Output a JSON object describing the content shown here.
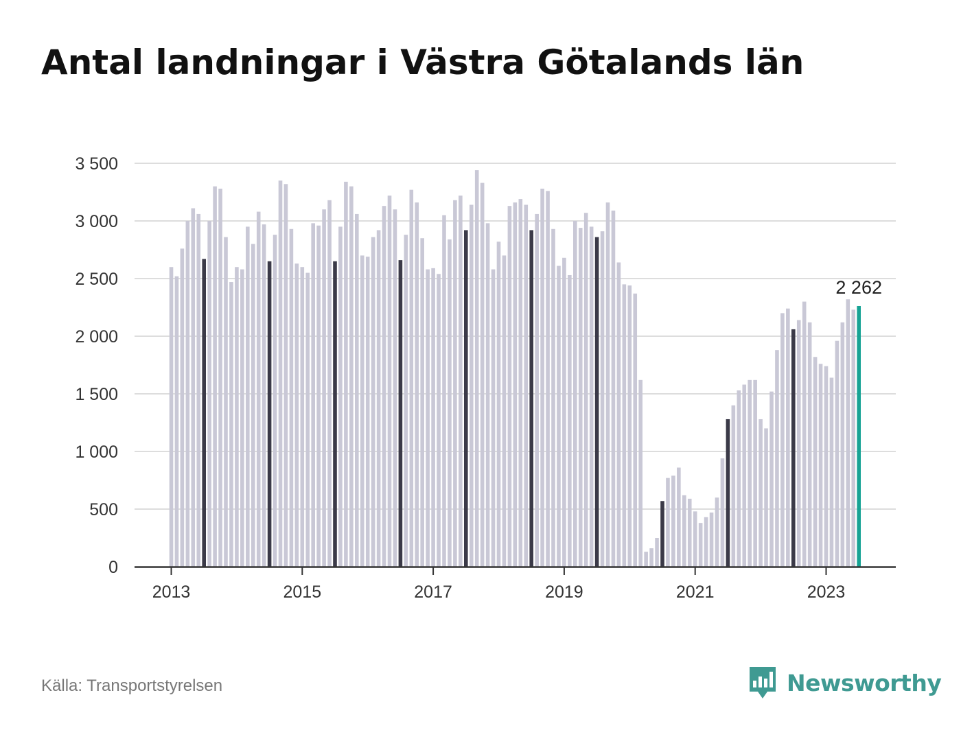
{
  "title": "Antal landningar i Västra Götalands län",
  "source": "Källa: Transportstyrelsen",
  "brand": "Newsworthy",
  "colors": {
    "bar": "#c9c8d6",
    "highlight": "#3b3a48",
    "latest": "#16a394",
    "grid": "#dddddd",
    "axis": "#333333",
    "brand": "#3f9a92"
  },
  "chart_data": {
    "type": "bar",
    "title": "Antal landningar i Västra Götalands län",
    "xlabel": "",
    "ylabel": "",
    "ylim": [
      0,
      3500
    ],
    "yticks": [
      0,
      500,
      1000,
      1500,
      2000,
      2500,
      3000,
      3500
    ],
    "ytick_labels": [
      "0",
      "500",
      "1 000",
      "1 500",
      "2 000",
      "2 500",
      "3 000",
      "3 500"
    ],
    "xtick_labels": [
      "2013",
      "2015",
      "2017",
      "2019",
      "2021",
      "2023"
    ],
    "start": "2013-01",
    "end": "2023-07",
    "grid": true,
    "highlighted_month": "July",
    "annotation": "2 262",
    "values": [
      2600,
      2520,
      2760,
      3000,
      3110,
      3060,
      2670,
      3000,
      3300,
      3280,
      2860,
      2470,
      2600,
      2580,
      2950,
      2800,
      3080,
      2970,
      2650,
      2880,
      3350,
      3320,
      2930,
      2630,
      2600,
      2550,
      2980,
      2960,
      3100,
      3180,
      2650,
      2950,
      3340,
      3300,
      3060,
      2700,
      2690,
      2860,
      2920,
      3130,
      3220,
      3100,
      2660,
      2880,
      3270,
      3160,
      2850,
      2580,
      2590,
      2540,
      3050,
      2840,
      3180,
      3220,
      2920,
      3140,
      3440,
      3330,
      2980,
      2580,
      2820,
      2700,
      3130,
      3160,
      3190,
      3140,
      2920,
      3060,
      3280,
      3260,
      2930,
      2610,
      2680,
      2530,
      3000,
      2940,
      3070,
      2950,
      2860,
      2910,
      3160,
      3090,
      2640,
      2450,
      2440,
      2370,
      1620,
      130,
      160,
      250,
      570,
      770,
      790,
      860,
      620,
      590,
      480,
      380,
      430,
      470,
      600,
      940,
      1280,
      1400,
      1530,
      1580,
      1620,
      1620,
      1280,
      1200,
      1520,
      1880,
      2200,
      2240,
      2060,
      2140,
      2300,
      2120,
      1820,
      1760,
      1740,
      1640,
      1960,
      2120,
      2320,
      2230,
      2262
    ]
  }
}
